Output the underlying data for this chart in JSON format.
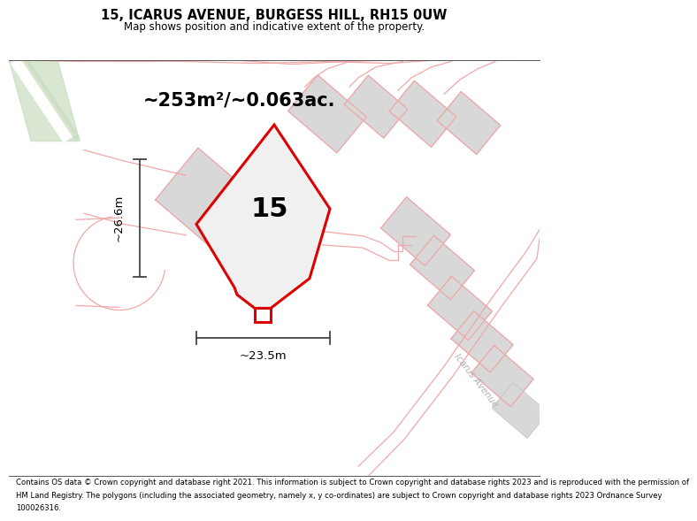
{
  "title": "15, ICARUS AVENUE, BURGESS HILL, RH15 0UW",
  "subtitle": "Map shows position and indicative extent of the property.",
  "area_label": "~253m²/~0.063ac.",
  "plot_number": "15",
  "width_label": "~23.5m",
  "height_label": "~26.6m",
  "footer_lines": [
    "Contains OS data © Crown copyright and database right 2021. This information is subject to Crown copyright and database rights 2023 and is reproduced with the permission of",
    "HM Land Registry. The polygons (including the associated geometry, namely x, y co-ordinates) are subject to Crown copyright and database rights 2023 Ordnance Survey",
    "100026316."
  ],
  "red_color": "#dd0000",
  "pink_color": "#f0a8a8",
  "light_pink": "#f5c8c8",
  "gray_fill": "#d8d8d8",
  "gray_edge": "#c8c8c8",
  "green_fill": "#c8dcc0",
  "road_fill": "#efefef",
  "plot_fill": "#f0f0f0"
}
